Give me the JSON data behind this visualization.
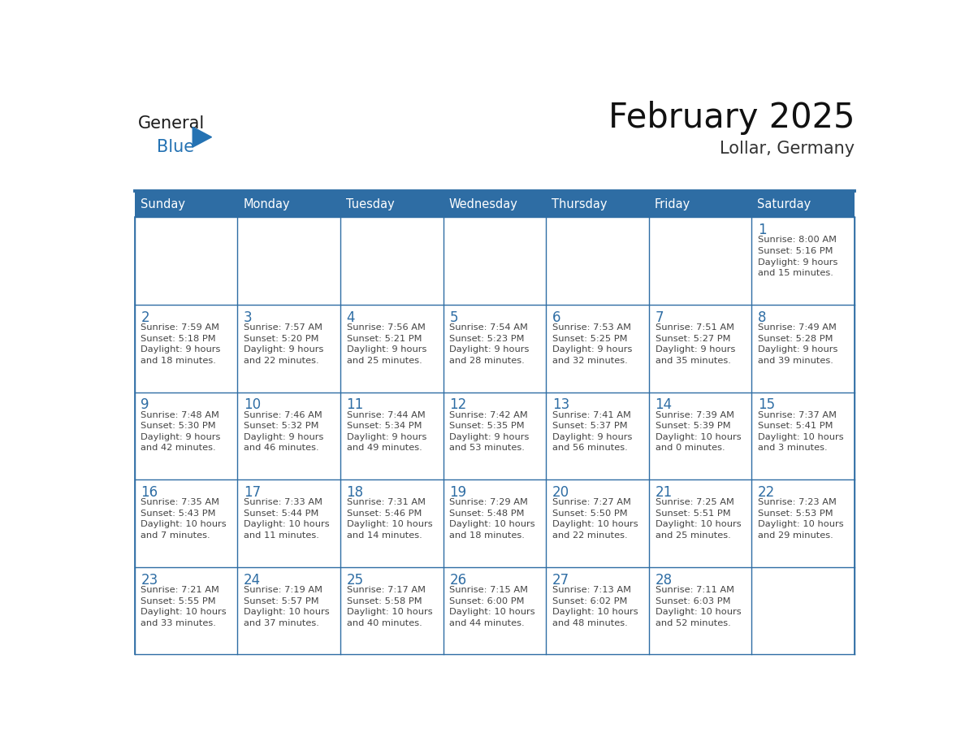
{
  "title": "February 2025",
  "subtitle": "Lollar, Germany",
  "days_of_week": [
    "Sunday",
    "Monday",
    "Tuesday",
    "Wednesday",
    "Thursday",
    "Friday",
    "Saturday"
  ],
  "header_bg": "#2E6DA4",
  "header_text": "#FFFFFF",
  "border_color": "#2E6DA4",
  "day_number_color": "#2E6DA4",
  "text_color": "#444444",
  "logo_general_color": "#1a1a1a",
  "logo_blue_color": "#2472B3",
  "calendar": [
    [
      {
        "day": null,
        "info": null
      },
      {
        "day": null,
        "info": null
      },
      {
        "day": null,
        "info": null
      },
      {
        "day": null,
        "info": null
      },
      {
        "day": null,
        "info": null
      },
      {
        "day": null,
        "info": null
      },
      {
        "day": "1",
        "info": "Sunrise: 8:00 AM\nSunset: 5:16 PM\nDaylight: 9 hours\nand 15 minutes."
      }
    ],
    [
      {
        "day": "2",
        "info": "Sunrise: 7:59 AM\nSunset: 5:18 PM\nDaylight: 9 hours\nand 18 minutes."
      },
      {
        "day": "3",
        "info": "Sunrise: 7:57 AM\nSunset: 5:20 PM\nDaylight: 9 hours\nand 22 minutes."
      },
      {
        "day": "4",
        "info": "Sunrise: 7:56 AM\nSunset: 5:21 PM\nDaylight: 9 hours\nand 25 minutes."
      },
      {
        "day": "5",
        "info": "Sunrise: 7:54 AM\nSunset: 5:23 PM\nDaylight: 9 hours\nand 28 minutes."
      },
      {
        "day": "6",
        "info": "Sunrise: 7:53 AM\nSunset: 5:25 PM\nDaylight: 9 hours\nand 32 minutes."
      },
      {
        "day": "7",
        "info": "Sunrise: 7:51 AM\nSunset: 5:27 PM\nDaylight: 9 hours\nand 35 minutes."
      },
      {
        "day": "8",
        "info": "Sunrise: 7:49 AM\nSunset: 5:28 PM\nDaylight: 9 hours\nand 39 minutes."
      }
    ],
    [
      {
        "day": "9",
        "info": "Sunrise: 7:48 AM\nSunset: 5:30 PM\nDaylight: 9 hours\nand 42 minutes."
      },
      {
        "day": "10",
        "info": "Sunrise: 7:46 AM\nSunset: 5:32 PM\nDaylight: 9 hours\nand 46 minutes."
      },
      {
        "day": "11",
        "info": "Sunrise: 7:44 AM\nSunset: 5:34 PM\nDaylight: 9 hours\nand 49 minutes."
      },
      {
        "day": "12",
        "info": "Sunrise: 7:42 AM\nSunset: 5:35 PM\nDaylight: 9 hours\nand 53 minutes."
      },
      {
        "day": "13",
        "info": "Sunrise: 7:41 AM\nSunset: 5:37 PM\nDaylight: 9 hours\nand 56 minutes."
      },
      {
        "day": "14",
        "info": "Sunrise: 7:39 AM\nSunset: 5:39 PM\nDaylight: 10 hours\nand 0 minutes."
      },
      {
        "day": "15",
        "info": "Sunrise: 7:37 AM\nSunset: 5:41 PM\nDaylight: 10 hours\nand 3 minutes."
      }
    ],
    [
      {
        "day": "16",
        "info": "Sunrise: 7:35 AM\nSunset: 5:43 PM\nDaylight: 10 hours\nand 7 minutes."
      },
      {
        "day": "17",
        "info": "Sunrise: 7:33 AM\nSunset: 5:44 PM\nDaylight: 10 hours\nand 11 minutes."
      },
      {
        "day": "18",
        "info": "Sunrise: 7:31 AM\nSunset: 5:46 PM\nDaylight: 10 hours\nand 14 minutes."
      },
      {
        "day": "19",
        "info": "Sunrise: 7:29 AM\nSunset: 5:48 PM\nDaylight: 10 hours\nand 18 minutes."
      },
      {
        "day": "20",
        "info": "Sunrise: 7:27 AM\nSunset: 5:50 PM\nDaylight: 10 hours\nand 22 minutes."
      },
      {
        "day": "21",
        "info": "Sunrise: 7:25 AM\nSunset: 5:51 PM\nDaylight: 10 hours\nand 25 minutes."
      },
      {
        "day": "22",
        "info": "Sunrise: 7:23 AM\nSunset: 5:53 PM\nDaylight: 10 hours\nand 29 minutes."
      }
    ],
    [
      {
        "day": "23",
        "info": "Sunrise: 7:21 AM\nSunset: 5:55 PM\nDaylight: 10 hours\nand 33 minutes."
      },
      {
        "day": "24",
        "info": "Sunrise: 7:19 AM\nSunset: 5:57 PM\nDaylight: 10 hours\nand 37 minutes."
      },
      {
        "day": "25",
        "info": "Sunrise: 7:17 AM\nSunset: 5:58 PM\nDaylight: 10 hours\nand 40 minutes."
      },
      {
        "day": "26",
        "info": "Sunrise: 7:15 AM\nSunset: 6:00 PM\nDaylight: 10 hours\nand 44 minutes."
      },
      {
        "day": "27",
        "info": "Sunrise: 7:13 AM\nSunset: 6:02 PM\nDaylight: 10 hours\nand 48 minutes."
      },
      {
        "day": "28",
        "info": "Sunrise: 7:11 AM\nSunset: 6:03 PM\nDaylight: 10 hours\nand 52 minutes."
      },
      {
        "day": null,
        "info": null
      }
    ]
  ]
}
